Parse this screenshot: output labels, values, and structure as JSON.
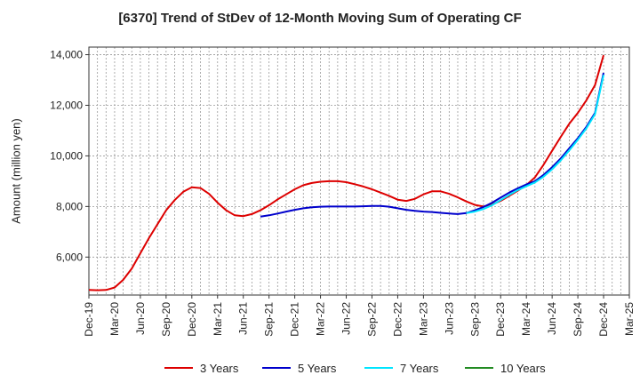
{
  "chart_data": {
    "type": "line",
    "title": "[6370]  Trend of StDev of 12-Month Moving Sum of Operating CF",
    "xlabel": "",
    "ylabel": "Amount (million yen)",
    "ylim": [
      4500,
      14300
    ],
    "yticks": [
      6000,
      8000,
      10000,
      12000,
      14000
    ],
    "ytick_labels": [
      "6,000",
      "8,000",
      "10,000",
      "12,000",
      "14,000"
    ],
    "xlim": [
      "2019-12",
      "2025-03"
    ],
    "xticks": [
      "2019-12",
      "2020-03",
      "2020-06",
      "2020-09",
      "2020-12",
      "2021-03",
      "2021-06",
      "2021-09",
      "2021-12",
      "2022-03",
      "2022-06",
      "2022-09",
      "2022-12",
      "2023-03",
      "2023-06",
      "2023-09",
      "2023-12",
      "2024-03",
      "2024-06",
      "2024-09",
      "2024-12",
      "2025-03"
    ],
    "xtick_labels": [
      "Dec-19",
      "Mar-20",
      "Jun-20",
      "Sep-20",
      "Dec-20",
      "Mar-21",
      "Jun-21",
      "Sep-21",
      "Dec-21",
      "Mar-22",
      "Jun-22",
      "Sep-22",
      "Dec-22",
      "Mar-23",
      "Jun-23",
      "Sep-23",
      "Dec-23",
      "Mar-24",
      "Jun-24",
      "Sep-24",
      "Dec-24",
      "Mar-25"
    ],
    "grid": true,
    "legend_position": "bottom",
    "series": [
      {
        "name": "3 Years",
        "color": "#dd0000",
        "x": [
          "2019-12",
          "2020-01",
          "2020-02",
          "2020-03",
          "2020-04",
          "2020-05",
          "2020-06",
          "2020-07",
          "2020-08",
          "2020-09",
          "2020-10",
          "2020-11",
          "2020-12",
          "2021-01",
          "2021-02",
          "2021-03",
          "2021-04",
          "2021-05",
          "2021-06",
          "2021-07",
          "2021-08",
          "2021-09",
          "2021-10",
          "2021-11",
          "2021-12",
          "2022-01",
          "2022-02",
          "2022-03",
          "2022-04",
          "2022-05",
          "2022-06",
          "2022-07",
          "2022-08",
          "2022-09",
          "2022-10",
          "2022-11",
          "2022-12",
          "2023-01",
          "2023-02",
          "2023-03",
          "2023-04",
          "2023-05",
          "2023-06",
          "2023-07",
          "2023-08",
          "2023-09",
          "2023-10",
          "2023-11",
          "2023-12",
          "2024-01",
          "2024-02",
          "2024-03",
          "2024-04",
          "2024-05",
          "2024-06",
          "2024-07",
          "2024-08",
          "2024-09",
          "2024-10",
          "2024-11",
          "2024-12"
        ],
        "values": [
          4700,
          4690,
          4700,
          4800,
          5100,
          5550,
          6150,
          6750,
          7300,
          7850,
          8250,
          8580,
          8760,
          8730,
          8500,
          8150,
          7850,
          7650,
          7620,
          7700,
          7850,
          8050,
          8280,
          8480,
          8680,
          8840,
          8930,
          8980,
          9000,
          9000,
          8960,
          8880,
          8790,
          8680,
          8550,
          8420,
          8270,
          8220,
          8300,
          8480,
          8600,
          8600,
          8500,
          8360,
          8200,
          8060,
          8000,
          8080,
          8220,
          8420,
          8620,
          8850,
          9150,
          9650,
          10200,
          10750,
          11270,
          11700,
          12200,
          12800,
          13980
        ]
      },
      {
        "name": "5 Years",
        "color": "#0000cc",
        "x": [
          "2021-08",
          "2021-09",
          "2021-10",
          "2021-11",
          "2021-12",
          "2022-01",
          "2022-02",
          "2022-03",
          "2022-04",
          "2022-05",
          "2022-06",
          "2022-07",
          "2022-08",
          "2022-09",
          "2022-10",
          "2022-11",
          "2022-12",
          "2023-01",
          "2023-02",
          "2023-03",
          "2023-04",
          "2023-05",
          "2023-06",
          "2023-07",
          "2023-08",
          "2023-09",
          "2023-10",
          "2023-11",
          "2023-12",
          "2024-01",
          "2024-02",
          "2024-03",
          "2024-04",
          "2024-05",
          "2024-06",
          "2024-07",
          "2024-08",
          "2024-09",
          "2024-10",
          "2024-11",
          "2024-12"
        ],
        "values": [
          7600,
          7650,
          7720,
          7800,
          7870,
          7930,
          7970,
          7990,
          8000,
          8000,
          8000,
          8000,
          8010,
          8020,
          8020,
          7990,
          7930,
          7870,
          7830,
          7800,
          7780,
          7750,
          7720,
          7700,
          7740,
          7850,
          7980,
          8150,
          8350,
          8550,
          8720,
          8870,
          9000,
          9250,
          9550,
          9900,
          10300,
          10700,
          11150,
          11700,
          13280
        ]
      },
      {
        "name": "7 Years",
        "color": "#00e5ff",
        "x": [
          "2023-08",
          "2023-09",
          "2023-10",
          "2023-11",
          "2023-12",
          "2024-01",
          "2024-02",
          "2024-03",
          "2024-04",
          "2024-05",
          "2024-06",
          "2024-07",
          "2024-08",
          "2024-09",
          "2024-10",
          "2024-11",
          "2024-12"
        ],
        "values": [
          7740,
          7800,
          7900,
          8050,
          8250,
          8460,
          8650,
          8800,
          8950,
          9180,
          9470,
          9820,
          10220,
          10640,
          11090,
          11650,
          13200
        ]
      },
      {
        "name": "10 Years",
        "color": "#228b22",
        "x": [],
        "values": []
      }
    ]
  }
}
